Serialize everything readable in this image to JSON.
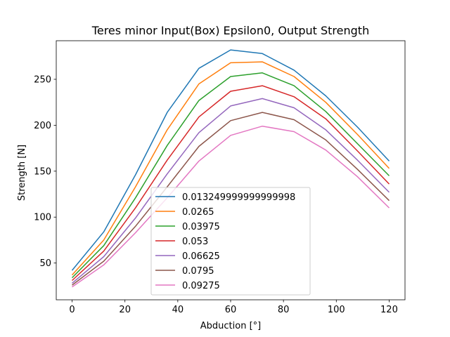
{
  "chart_data": {
    "type": "line",
    "title": "Teres minor Input(Box) Epsilon0, Output Strength",
    "xlabel": "Abduction [°]",
    "ylabel": "Strength [N]",
    "xlim": [
      -6,
      126
    ],
    "ylim": [
      10,
      292
    ],
    "xticks": [
      0,
      20,
      40,
      60,
      80,
      100,
      120
    ],
    "yticks": [
      50,
      100,
      150,
      200,
      250
    ],
    "grid": false,
    "legend_position": "lower center",
    "x": [
      0,
      12,
      24,
      36,
      48,
      60,
      72,
      84,
      96,
      108,
      120
    ],
    "series": [
      {
        "name": "0.013249999999999998",
        "color": "#1f77b4",
        "values": [
          42,
          84,
          146,
          214,
          262,
          282,
          278,
          260,
          232,
          198,
          161
        ]
      },
      {
        "name": "0.0265",
        "color": "#ff7f0e",
        "values": [
          37,
          75,
          133,
          195,
          245,
          268,
          269,
          253,
          225,
          190,
          153
        ]
      },
      {
        "name": "0.03975",
        "color": "#2ca02c",
        "values": [
          34,
          69,
          121,
          178,
          227,
          253,
          257,
          243,
          215,
          180,
          145
        ]
      },
      {
        "name": "0.053",
        "color": "#d62728",
        "values": [
          31,
          63,
          110,
          162,
          209,
          237,
          243,
          231,
          207,
          172,
          136
        ]
      },
      {
        "name": "0.06625",
        "color": "#9467bd",
        "values": [
          28,
          57,
          99,
          147,
          192,
          221,
          229,
          219,
          195,
          162,
          127
        ]
      },
      {
        "name": "0.0795",
        "color": "#8c564b",
        "values": [
          26,
          52,
          90,
          133,
          177,
          205,
          214,
          206,
          184,
          152,
          118
        ]
      },
      {
        "name": "0.09275",
        "color": "#e377c2",
        "values": [
          24,
          48,
          83,
          121,
          161,
          189,
          199,
          193,
          173,
          144,
          110
        ]
      }
    ]
  }
}
